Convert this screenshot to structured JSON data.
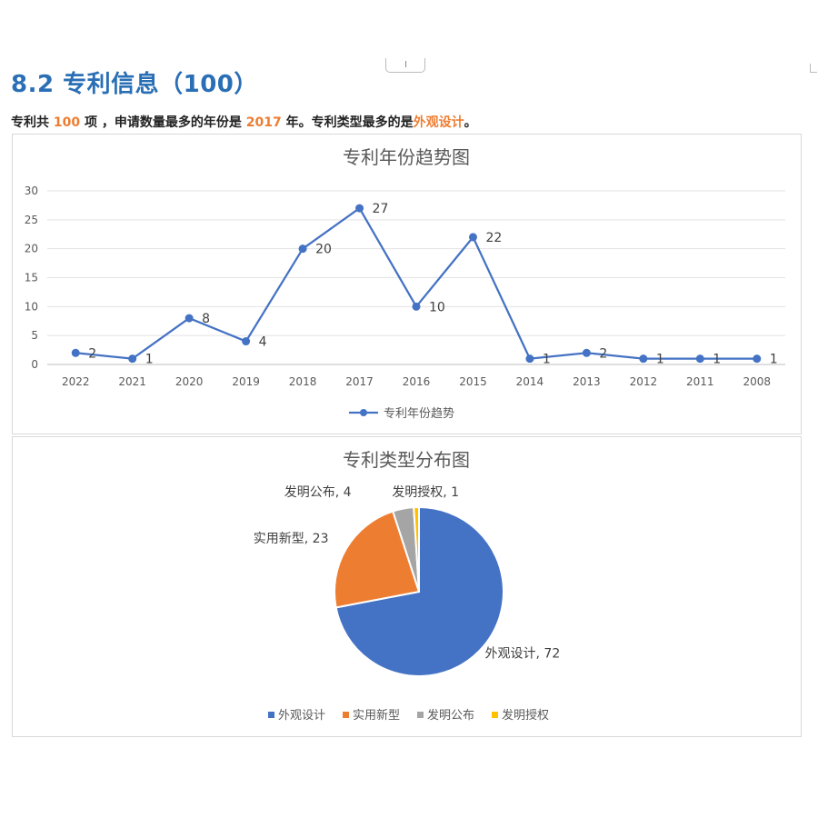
{
  "section": {
    "title": "8.2 专利信息（100）"
  },
  "summary": {
    "prefix": "专利共",
    "total": "100",
    "mid1": "项 ，申请数量最多的年份是",
    "top_year": "2017",
    "mid2": "年。专利类型最多的是",
    "top_type": "外观设计",
    "suffix": "。"
  },
  "chart_data": [
    {
      "type": "line",
      "title": "专利年份趋势图",
      "x": [
        "2022",
        "2021",
        "2020",
        "2019",
        "2018",
        "2017",
        "2016",
        "2015",
        "2014",
        "2013",
        "2012",
        "2011",
        "2008"
      ],
      "series": [
        {
          "name": "专利年份趋势",
          "values": [
            2,
            1,
            8,
            4,
            20,
            27,
            10,
            22,
            1,
            2,
            1,
            1,
            1
          ],
          "color": "#4472c4"
        }
      ],
      "ylim": [
        0,
        30
      ],
      "yticks": [
        0,
        5,
        10,
        15,
        20,
        25,
        30
      ],
      "grid": true,
      "legend": "bottom",
      "data_labels": true
    },
    {
      "type": "pie",
      "title": "专利类型分布图",
      "labels": [
        "外观设计",
        "实用新型",
        "发明公布",
        "发明授权"
      ],
      "values": [
        72,
        23,
        4,
        1
      ],
      "colors": [
        "#4472c4",
        "#ed7d31",
        "#a5a5a5",
        "#ffc000"
      ],
      "data_labels": [
        "外观设计, 72",
        "实用新型, 23",
        "发明公布, 4",
        "发明授权, 1"
      ],
      "legend": "bottom"
    }
  ]
}
